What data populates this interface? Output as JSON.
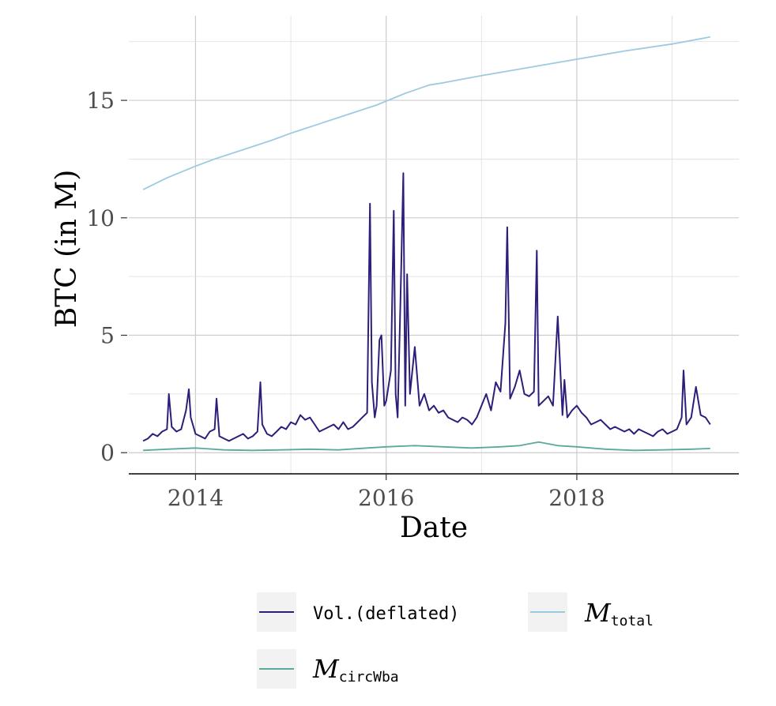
{
  "chart_data": {
    "type": "line",
    "xlabel": "Date",
    "ylabel": "BTC (in M)",
    "xlim": [
      2013.3,
      2019.7
    ],
    "ylim": [
      -0.9,
      18.6
    ],
    "x_ticks": [
      2014,
      2016,
      2018
    ],
    "x_tick_labels": [
      "2014",
      "2016",
      "2018"
    ],
    "y_ticks": [
      0,
      5,
      10,
      15
    ],
    "y_tick_labels": [
      "0",
      "5",
      "10",
      "15"
    ],
    "grid": true,
    "legend_position": "bottom",
    "series": [
      {
        "name": "Vol.(deflated)",
        "legend_text": "Vol.(deflated)",
        "color": "#2c1f7a",
        "x": [
          2013.45,
          2013.5,
          2013.55,
          2013.6,
          2013.65,
          2013.7,
          2013.72,
          2013.75,
          2013.8,
          2013.85,
          2013.9,
          2013.93,
          2013.95,
          2014.0,
          2014.05,
          2014.1,
          2014.15,
          2014.2,
          2014.22,
          2014.25,
          2014.3,
          2014.35,
          2014.4,
          2014.45,
          2014.5,
          2014.55,
          2014.6,
          2014.65,
          2014.68,
          2014.7,
          2014.75,
          2014.8,
          2014.85,
          2014.9,
          2014.95,
          2015.0,
          2015.05,
          2015.1,
          2015.15,
          2015.2,
          2015.25,
          2015.3,
          2015.35,
          2015.4,
          2015.45,
          2015.5,
          2015.55,
          2015.6,
          2015.65,
          2015.7,
          2015.75,
          2015.8,
          2015.83,
          2015.85,
          2015.88,
          2015.9,
          2015.93,
          2015.95,
          2015.98,
          2016.0,
          2016.05,
          2016.08,
          2016.1,
          2016.12,
          2016.15,
          2016.18,
          2016.2,
          2016.22,
          2016.25,
          2016.3,
          2016.35,
          2016.4,
          2016.45,
          2016.5,
          2016.55,
          2016.6,
          2016.65,
          2016.7,
          2016.75,
          2016.8,
          2016.85,
          2016.9,
          2016.95,
          2017.0,
          2017.05,
          2017.1,
          2017.15,
          2017.2,
          2017.25,
          2017.27,
          2017.3,
          2017.35,
          2017.4,
          2017.45,
          2017.5,
          2017.55,
          2017.58,
          2017.6,
          2017.65,
          2017.7,
          2017.75,
          2017.8,
          2017.85,
          2017.87,
          2017.9,
          2017.95,
          2018.0,
          2018.05,
          2018.1,
          2018.15,
          2018.2,
          2018.25,
          2018.3,
          2018.35,
          2018.4,
          2018.45,
          2018.5,
          2018.55,
          2018.6,
          2018.65,
          2018.7,
          2018.75,
          2018.8,
          2018.85,
          2018.9,
          2018.95,
          2019.0,
          2019.05,
          2019.1,
          2019.12,
          2019.15,
          2019.2,
          2019.25,
          2019.3,
          2019.35,
          2019.4
        ],
        "y": [
          0.5,
          0.6,
          0.8,
          0.7,
          0.9,
          1.0,
          2.5,
          1.1,
          0.9,
          1.0,
          1.8,
          2.7,
          1.5,
          0.8,
          0.7,
          0.6,
          0.9,
          1.0,
          2.3,
          0.7,
          0.6,
          0.5,
          0.6,
          0.7,
          0.8,
          0.6,
          0.7,
          0.9,
          3.0,
          1.2,
          0.8,
          0.7,
          0.9,
          1.1,
          1.0,
          1.3,
          1.2,
          1.6,
          1.4,
          1.5,
          1.2,
          0.9,
          1.0,
          1.1,
          1.2,
          1.0,
          1.3,
          1.0,
          1.1,
          1.3,
          1.5,
          1.7,
          10.6,
          3.0,
          1.5,
          2.0,
          4.8,
          5.0,
          2.0,
          2.2,
          3.5,
          10.3,
          2.5,
          1.5,
          6.5,
          11.9,
          2.0,
          7.6,
          2.5,
          4.5,
          2.0,
          2.5,
          1.8,
          2.0,
          1.7,
          1.8,
          1.5,
          1.4,
          1.3,
          1.5,
          1.4,
          1.2,
          1.5,
          2.0,
          2.5,
          1.8,
          3.0,
          2.6,
          5.5,
          9.6,
          2.3,
          2.8,
          3.5,
          2.5,
          2.4,
          2.6,
          8.6,
          2.0,
          2.2,
          2.4,
          2.0,
          5.8,
          1.6,
          3.1,
          1.5,
          1.8,
          2.0,
          1.7,
          1.5,
          1.2,
          1.3,
          1.4,
          1.2,
          1.0,
          1.1,
          1.0,
          0.9,
          1.0,
          0.8,
          1.0,
          0.9,
          0.8,
          0.7,
          0.9,
          1.0,
          0.8,
          0.9,
          1.0,
          1.5,
          3.5,
          1.2,
          1.5,
          2.8,
          1.6,
          1.5,
          1.2
        ]
      },
      {
        "name": "M_circWba",
        "legend_text": "M",
        "legend_sub": "circWba",
        "color": "#5aa99a",
        "x": [
          2013.45,
          2013.7,
          2014.0,
          2014.3,
          2014.6,
          2014.9,
          2015.2,
          2015.5,
          2015.8,
          2016.0,
          2016.3,
          2016.6,
          2016.9,
          2017.2,
          2017.4,
          2017.6,
          2017.8,
          2018.0,
          2018.3,
          2018.6,
          2018.9,
          2019.2,
          2019.4
        ],
        "y": [
          0.1,
          0.15,
          0.2,
          0.12,
          0.1,
          0.12,
          0.15,
          0.12,
          0.2,
          0.25,
          0.3,
          0.25,
          0.2,
          0.25,
          0.3,
          0.45,
          0.3,
          0.25,
          0.15,
          0.1,
          0.12,
          0.15,
          0.18
        ]
      },
      {
        "name": "M_total",
        "legend_text": "M",
        "legend_sub": "total",
        "color": "#9ecae1",
        "x": [
          2013.45,
          2013.7,
          2014.0,
          2014.2,
          2014.5,
          2014.8,
          2015.0,
          2015.3,
          2015.6,
          2015.9,
          2016.2,
          2016.45,
          2016.6,
          2017.0,
          2017.5,
          2018.0,
          2018.5,
          2019.0,
          2019.4
        ],
        "y": [
          11.2,
          11.7,
          12.2,
          12.5,
          12.9,
          13.3,
          13.6,
          14.0,
          14.4,
          14.8,
          15.3,
          15.65,
          15.75,
          16.05,
          16.4,
          16.75,
          17.1,
          17.4,
          17.7
        ]
      }
    ]
  }
}
